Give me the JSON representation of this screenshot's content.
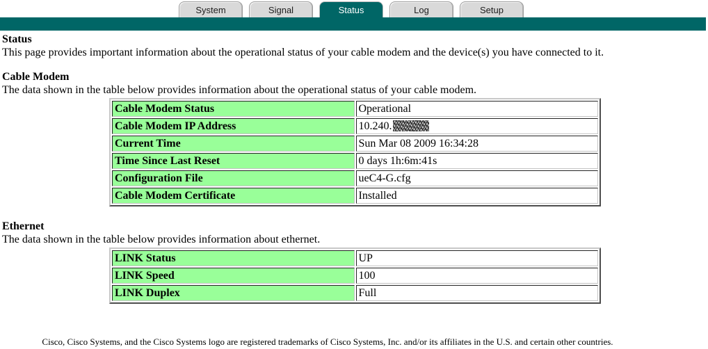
{
  "tabs": [
    {
      "label": "System",
      "active": false
    },
    {
      "label": "Signal",
      "active": false
    },
    {
      "label": "Status",
      "active": true
    },
    {
      "label": "Log",
      "active": false
    },
    {
      "label": "Setup",
      "active": false
    }
  ],
  "page": {
    "heading": "Status",
    "description": "This page provides important information about the operational status of your cable modem and the device(s) you have connected to it."
  },
  "cable_modem": {
    "heading": "Cable Modem",
    "description": "The data shown in the table below provides information about the operational status of your cable modem.",
    "rows": [
      {
        "label": "Cable Modem Status",
        "value": "Operational"
      },
      {
        "label": "Cable Modem IP Address",
        "value": "10.240.",
        "value_note": "remainder-of-ip-scribbled-out"
      },
      {
        "label": "Current Time",
        "value": "Sun Mar 08 2009 16:34:28"
      },
      {
        "label": "Time Since Last Reset",
        "value": "0 days 1h:6m:41s"
      },
      {
        "label": "Configuration File",
        "value": "ueC4-G.cfg"
      },
      {
        "label": "Cable Modem Certificate",
        "value": "Installed"
      }
    ]
  },
  "ethernet": {
    "heading": "Ethernet",
    "description": "The data shown in the table below provides information about ethernet.",
    "rows": [
      {
        "label": "LINK Status",
        "value": "UP"
      },
      {
        "label": "LINK Speed",
        "value": "100"
      },
      {
        "label": "LINK Duplex",
        "value": "Full"
      }
    ]
  },
  "footer": {
    "text": "Cisco, Cisco Systems, and the Cisco Systems logo are registered trademarks of Cisco Systems, Inc. and/or its affiliates in the U.S. and certain other countries."
  },
  "colors": {
    "teal": "#006666",
    "table_label_green": "#99ff99"
  }
}
